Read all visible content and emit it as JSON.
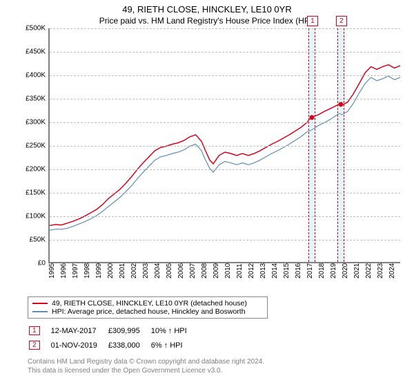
{
  "title_line1": "49, RIETH CLOSE, HINCKLEY, LE10 0YR",
  "title_line2": "Price paid vs. HM Land Registry's House Price Index (HPI)",
  "chart": {
    "type": "line",
    "background_color": "#ffffff",
    "grid_color": "#c0c0c0",
    "axis_color": "#808080",
    "ylabel_prefix": "£",
    "ylim": [
      0,
      500000
    ],
    "ytick_step": 50000,
    "yticks": [
      "£0",
      "£50K",
      "£100K",
      "£150K",
      "£200K",
      "£250K",
      "£300K",
      "£350K",
      "£400K",
      "£450K",
      "£500K"
    ],
    "xrange": [
      1995,
      2025
    ],
    "xticks": [
      1995,
      1996,
      1997,
      1998,
      1999,
      2000,
      2001,
      2002,
      2003,
      2004,
      2005,
      2006,
      2007,
      2008,
      2009,
      2010,
      2011,
      2012,
      2013,
      2014,
      2015,
      2016,
      2017,
      2018,
      2019,
      2020,
      2021,
      2022,
      2023,
      2024
    ],
    "series": [
      {
        "name": "49, RIETH CLOSE, HINCKLEY, LE10 0YR (detached house)",
        "color": "#d9001b",
        "line_width": 1.5,
        "data": [
          [
            1995,
            78000
          ],
          [
            1995.5,
            80000
          ],
          [
            1996,
            79000
          ],
          [
            1996.5,
            83000
          ],
          [
            1997,
            87000
          ],
          [
            1997.5,
            92000
          ],
          [
            1998,
            98000
          ],
          [
            1998.5,
            105000
          ],
          [
            1999,
            112000
          ],
          [
            1999.5,
            122000
          ],
          [
            2000,
            135000
          ],
          [
            2000.5,
            145000
          ],
          [
            2001,
            155000
          ],
          [
            2001.5,
            168000
          ],
          [
            2002,
            182000
          ],
          [
            2002.5,
            198000
          ],
          [
            2003,
            212000
          ],
          [
            2003.5,
            225000
          ],
          [
            2004,
            238000
          ],
          [
            2004.5,
            245000
          ],
          [
            2005,
            248000
          ],
          [
            2005.5,
            252000
          ],
          [
            2006,
            255000
          ],
          [
            2006.5,
            260000
          ],
          [
            2007,
            268000
          ],
          [
            2007.5,
            272000
          ],
          [
            2008,
            258000
          ],
          [
            2008.3,
            240000
          ],
          [
            2008.7,
            218000
          ],
          [
            2009,
            210000
          ],
          [
            2009.5,
            228000
          ],
          [
            2010,
            235000
          ],
          [
            2010.5,
            232000
          ],
          [
            2011,
            228000
          ],
          [
            2011.5,
            232000
          ],
          [
            2012,
            228000
          ],
          [
            2012.5,
            232000
          ],
          [
            2013,
            238000
          ],
          [
            2013.5,
            245000
          ],
          [
            2014,
            252000
          ],
          [
            2014.5,
            258000
          ],
          [
            2015,
            265000
          ],
          [
            2015.5,
            272000
          ],
          [
            2016,
            280000
          ],
          [
            2016.5,
            288000
          ],
          [
            2017,
            298000
          ],
          [
            2017.4,
            309995
          ],
          [
            2018,
            315000
          ],
          [
            2018.5,
            322000
          ],
          [
            2019,
            328000
          ],
          [
            2019.8,
            338000
          ],
          [
            2020,
            335000
          ],
          [
            2020.5,
            342000
          ],
          [
            2021,
            360000
          ],
          [
            2021.5,
            382000
          ],
          [
            2022,
            405000
          ],
          [
            2022.5,
            418000
          ],
          [
            2023,
            412000
          ],
          [
            2023.5,
            418000
          ],
          [
            2024,
            422000
          ],
          [
            2024.5,
            415000
          ],
          [
            2025,
            420000
          ]
        ]
      },
      {
        "name": "HPI: Average price, detached house, Hinckley and Bosworth",
        "color": "#5b8db8",
        "line_width": 1.2,
        "data": [
          [
            1995,
            68000
          ],
          [
            1995.5,
            70000
          ],
          [
            1996,
            70000
          ],
          [
            1996.5,
            72000
          ],
          [
            1997,
            76000
          ],
          [
            1997.5,
            81000
          ],
          [
            1998,
            86000
          ],
          [
            1998.5,
            92000
          ],
          [
            1999,
            99000
          ],
          [
            1999.5,
            108000
          ],
          [
            2000,
            118000
          ],
          [
            2000.5,
            128000
          ],
          [
            2001,
            138000
          ],
          [
            2001.5,
            150000
          ],
          [
            2002,
            163000
          ],
          [
            2002.5,
            178000
          ],
          [
            2003,
            192000
          ],
          [
            2003.5,
            205000
          ],
          [
            2004,
            218000
          ],
          [
            2004.5,
            225000
          ],
          [
            2005,
            228000
          ],
          [
            2005.5,
            232000
          ],
          [
            2006,
            235000
          ],
          [
            2006.5,
            240000
          ],
          [
            2007,
            248000
          ],
          [
            2007.5,
            252000
          ],
          [
            2008,
            238000
          ],
          [
            2008.3,
            220000
          ],
          [
            2008.7,
            200000
          ],
          [
            2009,
            192000
          ],
          [
            2009.5,
            208000
          ],
          [
            2010,
            215000
          ],
          [
            2010.5,
            212000
          ],
          [
            2011,
            208000
          ],
          [
            2011.5,
            212000
          ],
          [
            2012,
            208000
          ],
          [
            2012.5,
            212000
          ],
          [
            2013,
            218000
          ],
          [
            2013.5,
            225000
          ],
          [
            2014,
            232000
          ],
          [
            2014.5,
            238000
          ],
          [
            2015,
            245000
          ],
          [
            2015.5,
            252000
          ],
          [
            2016,
            260000
          ],
          [
            2016.5,
            268000
          ],
          [
            2017,
            278000
          ],
          [
            2017.4,
            282000
          ],
          [
            2018,
            292000
          ],
          [
            2018.5,
            298000
          ],
          [
            2019,
            305000
          ],
          [
            2019.8,
            318000
          ],
          [
            2020,
            315000
          ],
          [
            2020.5,
            322000
          ],
          [
            2021,
            340000
          ],
          [
            2021.5,
            362000
          ],
          [
            2022,
            382000
          ],
          [
            2022.5,
            395000
          ],
          [
            2023,
            388000
          ],
          [
            2023.5,
            392000
          ],
          [
            2024,
            398000
          ],
          [
            2024.5,
            390000
          ],
          [
            2025,
            395000
          ]
        ]
      }
    ],
    "markers": [
      {
        "num": "1",
        "x": 2017.37,
        "price": 309995
      },
      {
        "num": "2",
        "x": 2019.83,
        "price": 338000
      }
    ]
  },
  "transactions": [
    {
      "num": "1",
      "date": "12-MAY-2017",
      "price": "£309,995",
      "delta": "10% ↑ HPI"
    },
    {
      "num": "2",
      "date": "01-NOV-2019",
      "price": "£338,000",
      "delta": "6% ↑ HPI"
    }
  ],
  "footer_line1": "Contains HM Land Registry data © Crown copyright and database right 2024.",
  "footer_line2": "This data is licensed under the Open Government Licence v3.0."
}
